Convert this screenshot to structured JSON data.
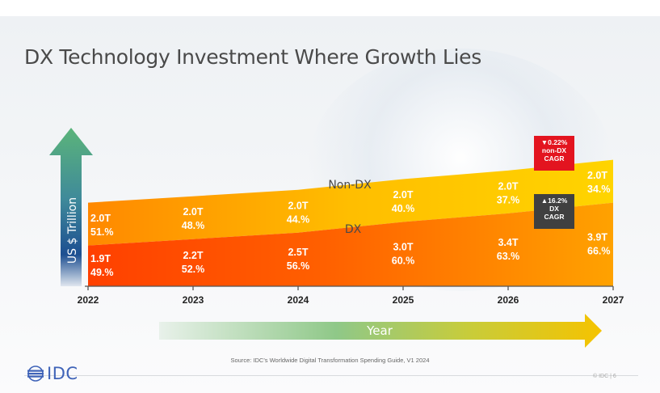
{
  "title": "DX Technology Investment Where Growth Lies",
  "ylabel": "US $ Trillion",
  "year_arrow_label": "Year",
  "source": "Source: IDC's Worldwide Digital Transformation Spending Guide, V1 2024",
  "logo_text": "IDC",
  "page_number": "© IDC | 6",
  "cagr_nondx": {
    "arrow": "▼",
    "value": "0.22%",
    "line2": "non-DX",
    "line3": "CAGR"
  },
  "cagr_dx": {
    "arrow": "▲",
    "value": "16.2%",
    "line2": "DX",
    "line3": "CAGR"
  },
  "colors": {
    "dx_dark": "#ff4000",
    "dx_light": "#ff9a00",
    "nondx_dark": "#ff8a00",
    "nondx_light": "#ffd000",
    "arrow_green": "#5bb47a",
    "arrow_blue": "#1d4f91",
    "cagr_red": "#e3141f",
    "cagr_dark": "#404040",
    "logo_blue": "#3f63b8"
  },
  "chart_data": {
    "type": "area",
    "stacked": true,
    "categories": [
      "2022",
      "2023",
      "2024",
      "2025",
      "2026",
      "2027"
    ],
    "series": [
      {
        "name": "DX",
        "values": [
          1.9,
          2.2,
          2.5,
          3.0,
          3.4,
          3.9
        ],
        "labels": [
          "1.9T",
          "2.2T",
          "2.5T",
          "3.0T",
          "3.4T",
          "3.9T"
        ],
        "shares": [
          "49.%",
          "52.%",
          "56.%",
          "60.%",
          "63.%",
          "66.%"
        ]
      },
      {
        "name": "Non-DX",
        "values": [
          2.0,
          2.0,
          2.0,
          2.0,
          2.0,
          2.0
        ],
        "labels": [
          "2.0T",
          "2.0T",
          "2.0T",
          "2.0T",
          "2.0T",
          "2.0T"
        ],
        "shares": [
          "51.%",
          "48.%",
          "44.%",
          "40.%",
          "37.%",
          "34.%"
        ]
      }
    ],
    "xlabel": "Year",
    "ylabel": "US $ Trillion",
    "grid": false,
    "legend": "none"
  }
}
